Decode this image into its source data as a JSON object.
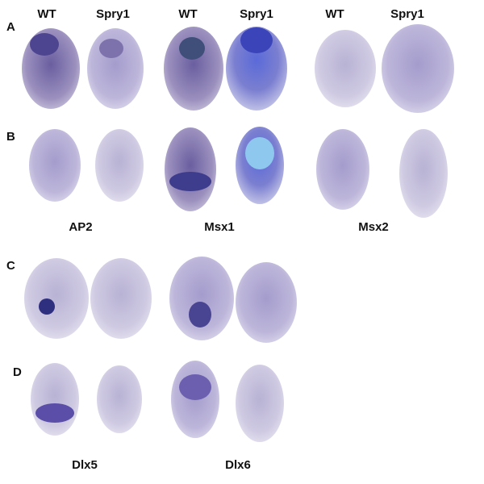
{
  "columns": [
    "WT",
    "Spry1",
    "WT",
    "Spry1",
    "WT",
    "Spry1"
  ],
  "panels": [
    "A",
    "B",
    "C",
    "D"
  ],
  "genes_top": [
    "AP2",
    "Msx1",
    "Msx2"
  ],
  "genes_bottom": [
    "Dlx5",
    "Dlx6"
  ]
}
